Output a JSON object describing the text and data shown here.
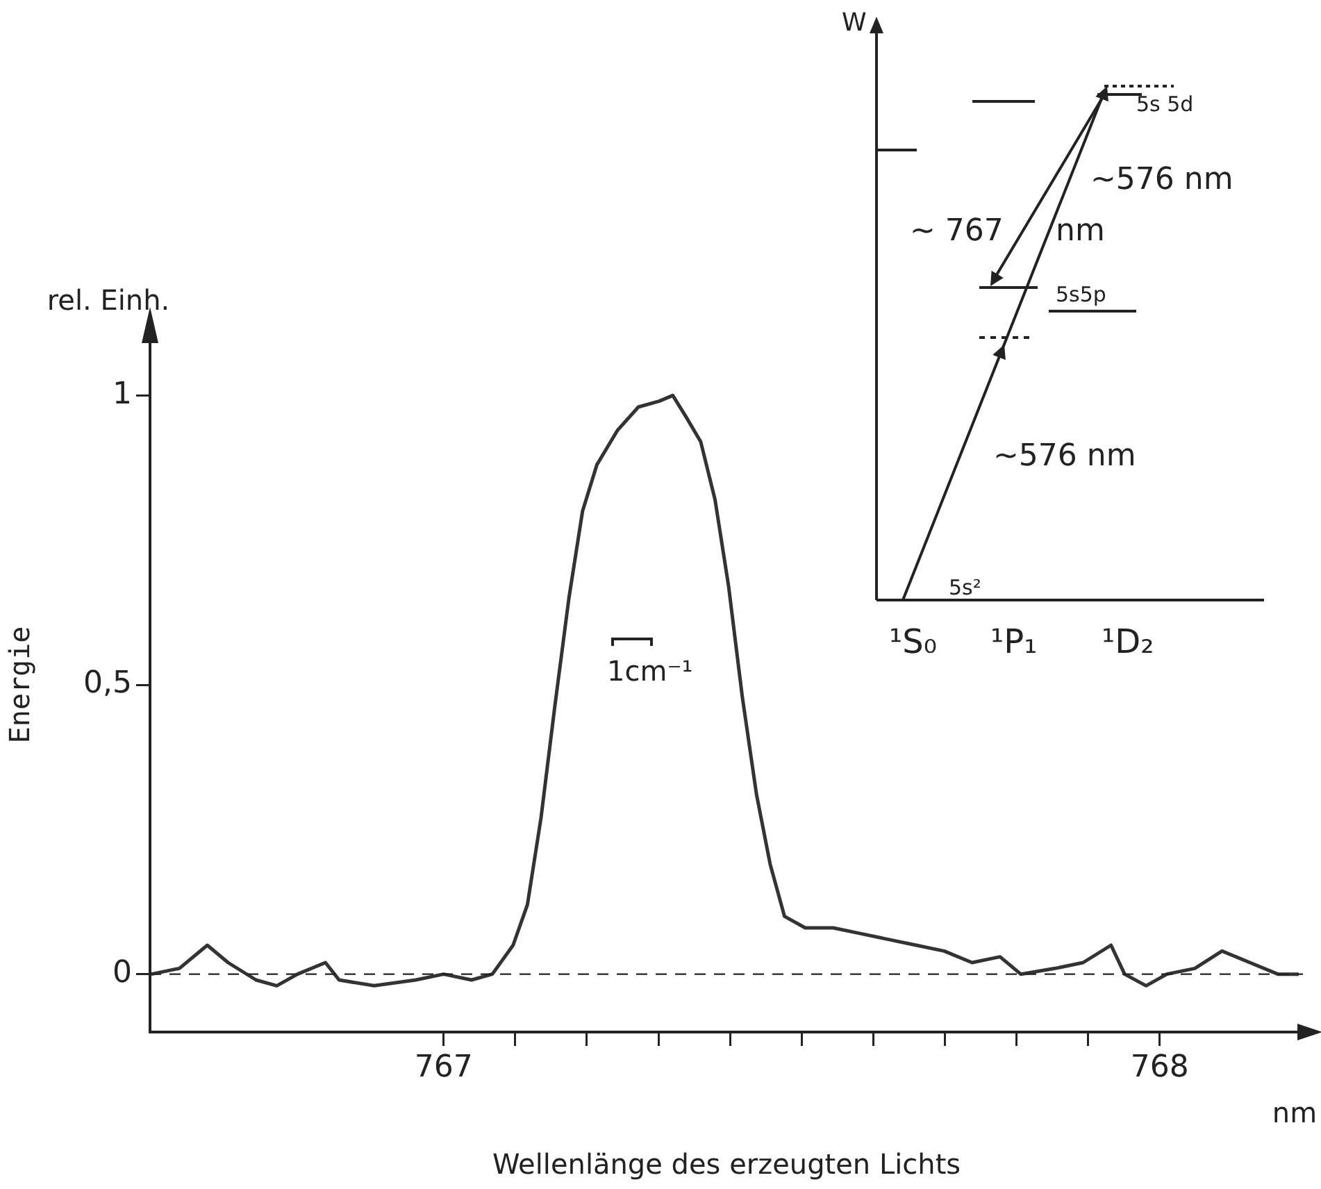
{
  "chart_data": {
    "type": "line",
    "xlabel": "Wellenlänge des erzeugten Lichts",
    "ylabel": "Energie",
    "annotations": [
      "rel. Einh.",
      "nm",
      "1cm⁻¹",
      "W",
      "5s 5d",
      "~576 nm",
      "~ 767",
      "nm",
      "5s5p",
      "~576 nm",
      "5s²",
      "¹S₀",
      "¹P₁",
      "¹D₂"
    ],
    "x": [
      766.592,
      766.631,
      766.67,
      766.699,
      766.738,
      766.767,
      766.796,
      766.835,
      766.854,
      766.903,
      766.961,
      767.0,
      767.039,
      767.068,
      767.097,
      767.117,
      767.136,
      767.155,
      767.175,
      767.194,
      767.214,
      767.243,
      767.272,
      767.301,
      767.32,
      767.34,
      767.359,
      767.379,
      767.398,
      767.417,
      767.437,
      767.456,
      767.476,
      767.505,
      767.544,
      767.583,
      767.621,
      767.66,
      767.699,
      767.738,
      767.777,
      767.806,
      767.854,
      767.893,
      767.932,
      767.951,
      767.981,
      768.01,
      768.049,
      768.087,
      768.126,
      768.165,
      768.194
    ],
    "values": [
      0,
      0.01,
      0.05,
      0.02,
      -0.01,
      -0.02,
      0,
      0.02,
      -0.01,
      -0.02,
      -0.01,
      0,
      -0.01,
      0,
      0.05,
      0.12,
      0.27,
      0.46,
      0.65,
      0.8,
      0.88,
      0.94,
      0.98,
      0.99,
      1.0,
      0.96,
      0.92,
      0.82,
      0.67,
      0.48,
      0.31,
      0.19,
      0.1,
      0.08,
      0.08,
      0.07,
      0.06,
      0.05,
      0.04,
      0.02,
      0.03,
      0,
      0.01,
      0.02,
      0.05,
      0,
      -0.02,
      0,
      0.01,
      0.04,
      0.02,
      0,
      0
    ],
    "color": "#333333",
    "xlim": [
      766.59,
      768.2
    ],
    "xticks": [
      767,
      {
        "value": 767.1,
        "label": null
      },
      {
        "value": 767.2,
        "label": null
      },
      {
        "value": 767.3,
        "label": null
      },
      {
        "value": 767.4,
        "label": null
      },
      {
        "value": 767.5,
        "label": null
      },
      {
        "value": 767.6,
        "label": null
      },
      {
        "value": 767.7,
        "label": null
      },
      {
        "value": 767.8,
        "label": null
      },
      {
        "value": 767.9,
        "label": null
      },
      768
    ],
    "ylim": [
      -0.1,
      1.1
    ],
    "yticks": [
      0,
      {
        "value": 0.5,
        "label": "0,5"
      },
      1
    ],
    "ref_lines": [
      {
        "axis": "y",
        "value": 0,
        "line_style": "dashed"
      }
    ],
    "marker": "none",
    "line_style": "solid",
    "legend": false,
    "grid": false
  }
}
